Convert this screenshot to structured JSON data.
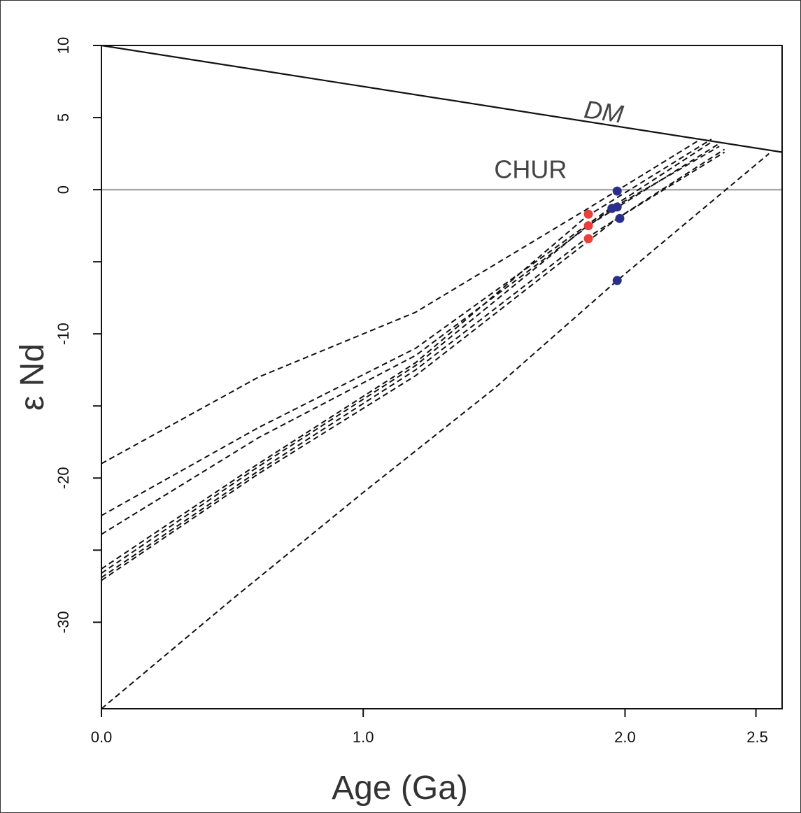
{
  "chart_data": {
    "type": "line",
    "xlabel": "Age (Ga)",
    "ylabel": "ε Nd",
    "xlim": [
      0,
      2.6
    ],
    "ylim": [
      -36,
      10
    ],
    "x_ticks": [
      {
        "value": 0,
        "label": "0.0"
      },
      {
        "value": 1,
        "label": "1.0"
      },
      {
        "value": 2,
        "label": "2.0"
      },
      {
        "value": 2.5,
        "label": "2.5"
      }
    ],
    "y_ticks": [
      {
        "value": 10,
        "label": "10"
      },
      {
        "value": 5,
        "label": "5"
      },
      {
        "value": 0,
        "label": "0"
      },
      {
        "value": -5,
        "label": ""
      },
      {
        "value": -10,
        "label": "-10"
      },
      {
        "value": -15,
        "label": ""
      },
      {
        "value": -20,
        "label": "-20"
      },
      {
        "value": -25,
        "label": ""
      },
      {
        "value": -30,
        "label": "-30"
      }
    ],
    "reference_lines": [
      {
        "label": "DM",
        "x": [
          0,
          2.6
        ],
        "y": [
          10,
          2.6
        ],
        "color": "#111111",
        "style": "solid",
        "label_x": 1.84,
        "label_y": 5.0
      },
      {
        "label": "CHUR",
        "x": [
          0,
          2.6
        ],
        "y": [
          0,
          0
        ],
        "color": "#aaaaaa",
        "style": "solid",
        "label_x": 1.5,
        "label_y": 0.8
      }
    ],
    "evolution_lines": [
      {
        "x": [
          0,
          0.6,
          1.2,
          1.85,
          2.28
        ],
        "y": [
          -19,
          -13,
          -8.5,
          -1.4,
          3.4
        ]
      },
      {
        "x": [
          0,
          0.6,
          1.2,
          1.95,
          2.33
        ],
        "y": [
          -22.6,
          -16.5,
          -11.0,
          -1.2,
          3.3
        ]
      },
      {
        "x": [
          0,
          0.6,
          1.2,
          1.95,
          2.36
        ],
        "y": [
          -23.9,
          -17.2,
          -11.5,
          -1.3,
          3.0
        ]
      },
      {
        "x": [
          0,
          0.6,
          1.2,
          1.85,
          2.33
        ],
        "y": [
          -26.3,
          -19.0,
          -12.0,
          -1.9,
          3.5
        ]
      },
      {
        "x": [
          0,
          0.6,
          1.2,
          1.85,
          2.36
        ],
        "y": [
          -26.6,
          -19.2,
          -12.2,
          -2.6,
          3.2
        ]
      },
      {
        "x": [
          0,
          0.6,
          1.2,
          1.85,
          2.38
        ],
        "y": [
          -26.9,
          -19.5,
          -12.5,
          -3.4,
          2.8
        ]
      },
      {
        "x": [
          0,
          0.6,
          1.2,
          1.97,
          2.38
        ],
        "y": [
          -27.1,
          -19.7,
          -12.9,
          -2.0,
          2.6
        ]
      },
      {
        "x": [
          0,
          0.5,
          1.0,
          1.5,
          1.97,
          2.55
        ],
        "y": [
          -36,
          -28.4,
          -21.0,
          -13.8,
          -6.3,
          2.5
        ]
      }
    ],
    "points": [
      {
        "x": 1.86,
        "y": -1.7,
        "color": "#e8413c"
      },
      {
        "x": 1.86,
        "y": -2.5,
        "color": "#e8413c"
      },
      {
        "x": 1.86,
        "y": -3.4,
        "color": "#e8413c"
      },
      {
        "x": 1.97,
        "y": -0.1,
        "color": "#2b2f8c"
      },
      {
        "x": 1.97,
        "y": -1.2,
        "color": "#2b2f8c"
      },
      {
        "x": 1.95,
        "y": -1.3,
        "color": "#2b2f8c"
      },
      {
        "x": 1.98,
        "y": -2.0,
        "color": "#2b2f8c"
      },
      {
        "x": 1.97,
        "y": -6.3,
        "color": "#2b2f8c"
      }
    ]
  }
}
